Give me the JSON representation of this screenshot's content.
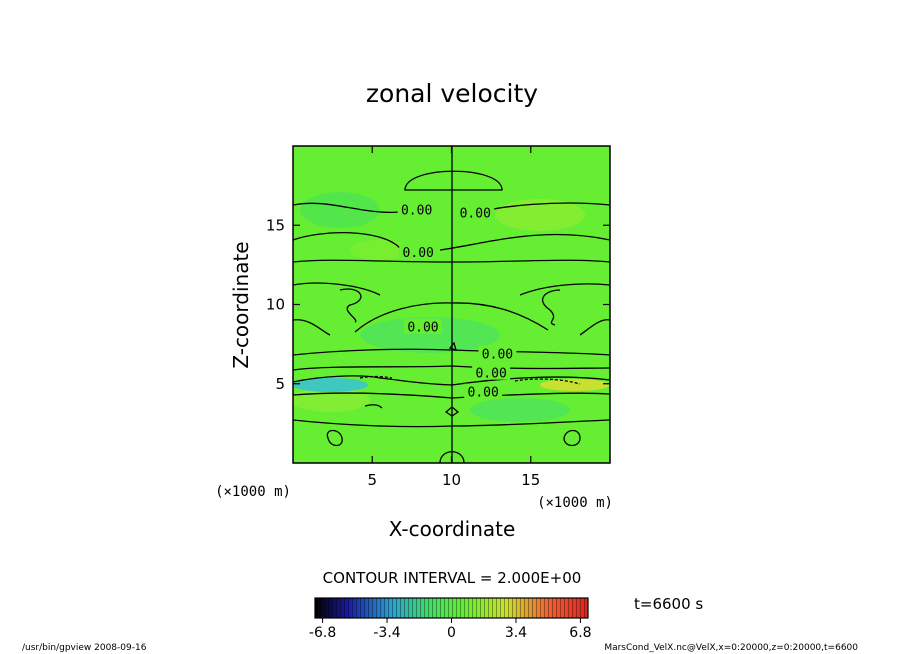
{
  "chart_data": {
    "type": "heatmap",
    "title": "zonal velocity",
    "xlabel": "X-coordinate",
    "ylabel": "Z-coordinate",
    "x_unit": "(×1000 m)",
    "z_unit": "(×1000 m)",
    "xlim": [
      0,
      20
    ],
    "ylim": [
      0,
      20
    ],
    "x_ticks": [
      5,
      10,
      15
    ],
    "y_ticks": [
      5,
      10,
      15
    ],
    "contour_interval_label": "CONTOUR INTERVAL = 2.000E+00",
    "contour_labels": [
      {
        "x": 7.8,
        "z": 16.0,
        "text": "0.00"
      },
      {
        "x": 11.5,
        "z": 15.8,
        "text": "0.00"
      },
      {
        "x": 7.9,
        "z": 13.3,
        "text": "0.00"
      },
      {
        "x": 8.2,
        "z": 8.6,
        "text": "0.00"
      },
      {
        "x": 12.9,
        "z": 6.9,
        "text": "0.00"
      },
      {
        "x": 12.5,
        "z": 5.7,
        "text": "0.00"
      },
      {
        "x": 12.0,
        "z": 4.5,
        "text": "0.00"
      }
    ],
    "colorbar": {
      "ticks": [
        "-6.8",
        "-3.4",
        "0",
        "3.4",
        "6.8"
      ],
      "range": [
        -7.2,
        7.2
      ]
    },
    "time_label": "t=6600 s"
  },
  "footer": {
    "left": "/usr/bin/gpview  2008-09-16",
    "right": "MarsCond_VelX.nc@VelX,x=0:20000,z=0:20000,t=6600"
  },
  "colors": {
    "field": "#66ee33",
    "line": "#000000"
  }
}
